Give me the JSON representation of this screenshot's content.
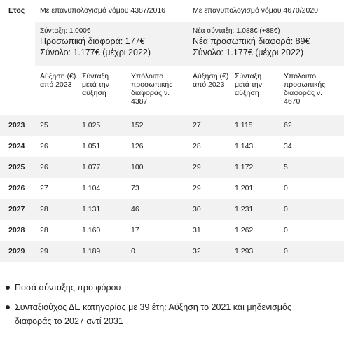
{
  "table": {
    "year_header": "Ετος",
    "groups": [
      {
        "title": "Με επανυπολογισμό νόμου 4387/2016",
        "info": [
          "Σύνταξη: 1.000€",
          "Προσωπική διαφορά: 177€",
          "Σύνολο: 1.177€ (μέχρι 2022)"
        ],
        "columns": [
          "Αύξηση (€) από 2023",
          "Σύνταξη μετά την αύξηση",
          "Υπόλοιπο προσωπικής διαφοράς ν. 4387"
        ]
      },
      {
        "title": "Με επανυπολογισμό νόμου 4670/2020",
        "info": [
          "Νέα σύνταξη: 1.088€ (+88€)",
          "Νέα προσωπική διαφορά: 89€",
          "Σύνολο: 1.177€ (μέχρι 2022)"
        ],
        "columns": [
          "Αύξηση (€) από 2023",
          "Σύνταξη μετά την αύξηση",
          "Υπόλοιπο προσωπικής διαφοράς ν. 4670"
        ]
      }
    ],
    "rows": [
      {
        "year": "2023",
        "cells": [
          "25",
          "1.025",
          "152",
          "27",
          "1.115",
          "62"
        ]
      },
      {
        "year": "2024",
        "cells": [
          "26",
          "1.051",
          "126",
          "28",
          "1.143",
          "34"
        ]
      },
      {
        "year": "2025",
        "cells": [
          "26",
          "1.077",
          "100",
          "29",
          "1.172",
          "5"
        ]
      },
      {
        "year": "2026",
        "cells": [
          "27",
          "1.104",
          "73",
          "29",
          "1.201",
          "0"
        ]
      },
      {
        "year": "2027",
        "cells": [
          "28",
          "1.131",
          "46",
          "30",
          "1.231",
          "0"
        ]
      },
      {
        "year": "2028",
        "cells": [
          "28",
          "1.160",
          "17",
          "31",
          "1.262",
          "0"
        ]
      },
      {
        "year": "2029",
        "cells": [
          "29",
          "1.189",
          "0",
          "32",
          "1.293",
          "0"
        ]
      }
    ]
  },
  "notes": [
    "Ποσά σύνταξης προ φόρου",
    "Συνταξιούχος ΔΕ κατηγορίας με 39 έτη: Αύξηση το 2021 και μηδενισμός διαφοράς το 2027 αντί 2031"
  ]
}
